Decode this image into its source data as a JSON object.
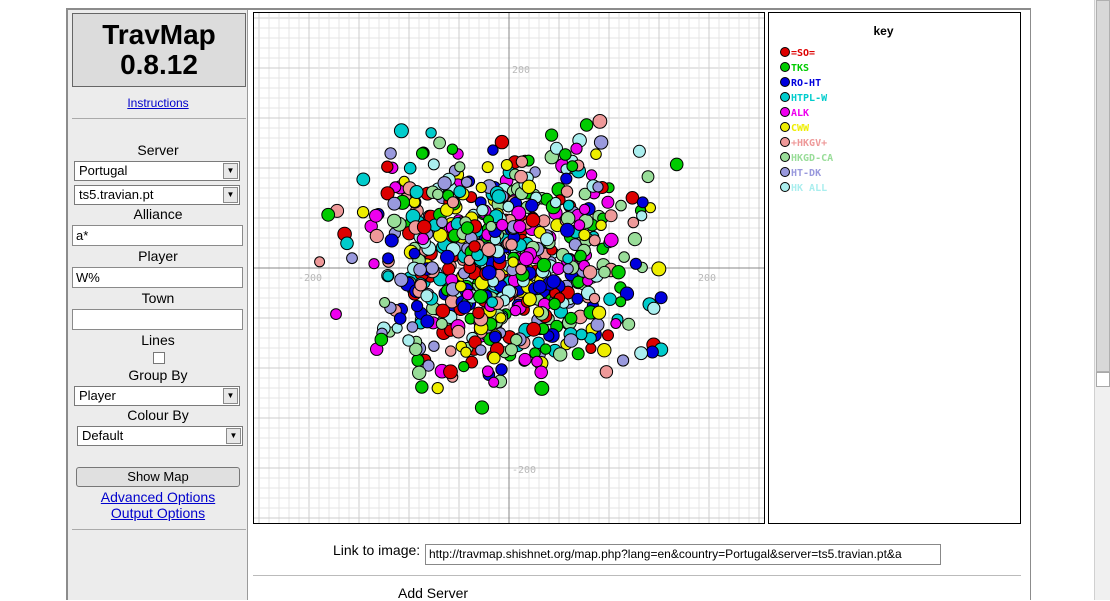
{
  "sidebar": {
    "logo_title": "TravMap",
    "logo_version": "0.8.12",
    "instructions_link": "Instructions",
    "server_label": "Server",
    "country_select": "Portugal",
    "server_select": "ts5.travian.pt",
    "alliance_label": "Alliance",
    "alliance_value": "a*",
    "player_label": "Player",
    "player_value": "W%",
    "town_label": "Town",
    "town_value": "",
    "lines_label": "Lines",
    "group_by_label": "Group By",
    "group_by_select": "Player",
    "colour_by_label": "Colour By",
    "colour_by_select": "Default",
    "show_map_button": "Show Map",
    "advanced_options_link": "Advanced Options",
    "output_options_link": "Output Options"
  },
  "map": {
    "axis_labels": {
      "top": "200",
      "bottom": "-200",
      "left": "-200",
      "right": "200"
    }
  },
  "key": {
    "title": "key",
    "items": [
      {
        "label": "=SO=",
        "color": "#dd0000"
      },
      {
        "label": "TKS",
        "color": "#00cc00"
      },
      {
        "label": "RO-HT",
        "color": "#0000dd"
      },
      {
        "label": "HTPL-W",
        "color": "#00cccc"
      },
      {
        "label": "ALK",
        "color": "#ee00ee"
      },
      {
        "label": "CWW",
        "color": "#eeee00"
      },
      {
        "label": "+HKGV+",
        "color": "#ee9999"
      },
      {
        "label": "HKGD-CA",
        "color": "#99dd99"
      },
      {
        "label": "HT-DK",
        "color": "#9999dd"
      },
      {
        "label": "HK  ALL",
        "color": "#aaeeee"
      }
    ]
  },
  "footer": {
    "link_label": "Link to image:",
    "link_value": "http://travmap.shishnet.org/map.php?lang=en&country=Portugal&server=ts5.travian.pt&a",
    "add_server": "Add Server"
  }
}
